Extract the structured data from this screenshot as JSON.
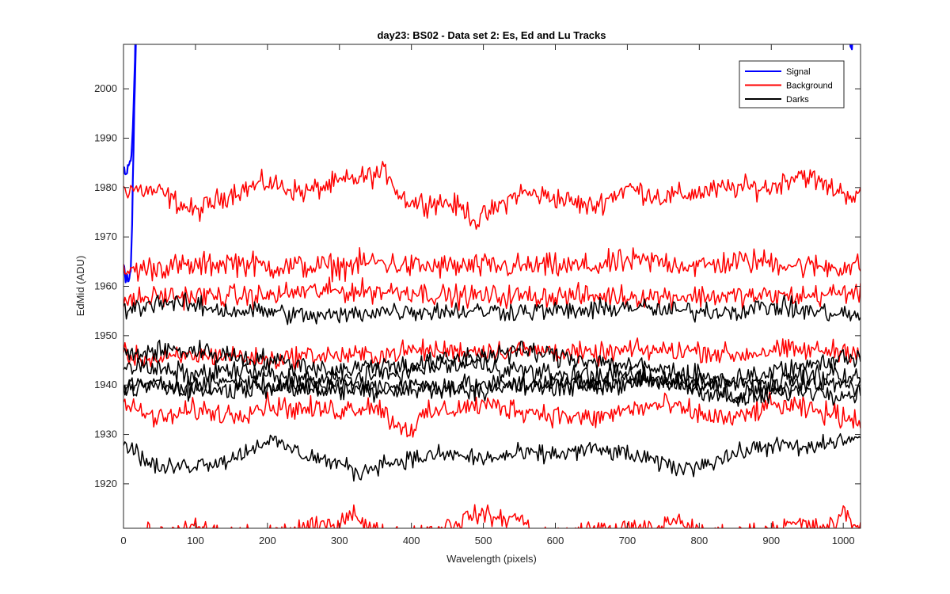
{
  "chart_data": {
    "type": "line",
    "title": "day23: BS02 - Data set 2: Es, Ed and Lu Tracks",
    "xlabel": "Wavelength (pixels)",
    "ylabel": "EdMid (ADU)",
    "xlim": [
      0,
      1024
    ],
    "ylim": [
      1911,
      2009
    ],
    "xticks": [
      0,
      100,
      200,
      300,
      400,
      500,
      600,
      700,
      800,
      900,
      1000
    ],
    "yticks": [
      1920,
      1930,
      1940,
      1950,
      1960,
      1970,
      1980,
      1990,
      2000
    ],
    "grid": false,
    "legend_position": "top-right",
    "colors": {
      "Signal": "#0000ff",
      "Background": "#ff0000",
      "Darks": "#000000"
    },
    "series": [
      {
        "name": "Signal",
        "color": "#0000ff",
        "noise": 1.2,
        "points": [
          [
            0,
            1983
          ],
          [
            3,
            1982
          ],
          [
            6,
            1984
          ],
          [
            9,
            1985
          ],
          [
            12,
            1988
          ],
          [
            14,
            1996
          ],
          [
            16,
            2006
          ],
          [
            17,
            2015
          ]
        ]
      },
      {
        "name": "Signal",
        "color": "#0000ff",
        "noise": 1.5,
        "points": [
          [
            0,
            1965
          ],
          [
            4,
            1962
          ],
          [
            7,
            1961
          ],
          [
            10,
            1963
          ],
          [
            12,
            1972
          ],
          [
            14,
            1988
          ],
          [
            16,
            2002
          ],
          [
            18,
            2015
          ]
        ]
      },
      {
        "name": "Signal",
        "color": "#0000ff",
        "noise": 1.0,
        "points": [
          [
            1008,
            2015
          ],
          [
            1010,
            2007
          ],
          [
            1013,
            2010
          ],
          [
            1016,
            2010
          ],
          [
            1020,
            2015
          ]
        ]
      },
      {
        "name": "Background",
        "color": "#ff0000",
        "noise": 1.6,
        "points": [
          [
            0,
            1980
          ],
          [
            50,
            1979
          ],
          [
            100,
            1975
          ],
          [
            150,
            1979
          ],
          [
            200,
            1981
          ],
          [
            250,
            1979
          ],
          [
            300,
            1981
          ],
          [
            330,
            1982
          ],
          [
            370,
            1983
          ],
          [
            380,
            1979
          ],
          [
            400,
            1977
          ],
          [
            450,
            1977
          ],
          [
            480,
            1975
          ],
          [
            490,
            1973
          ],
          [
            550,
            1979
          ],
          [
            600,
            1978
          ],
          [
            650,
            1976
          ],
          [
            700,
            1980
          ],
          [
            750,
            1978
          ],
          [
            800,
            1979
          ],
          [
            850,
            1980
          ],
          [
            900,
            1980
          ],
          [
            940,
            1983
          ],
          [
            980,
            1980
          ],
          [
            1024,
            1978
          ]
        ]
      },
      {
        "name": "Background",
        "color": "#ff0000",
        "noise": 1.8,
        "points": [
          [
            0,
            1963
          ],
          [
            50,
            1964
          ],
          [
            100,
            1964
          ],
          [
            150,
            1965
          ],
          [
            200,
            1964
          ],
          [
            250,
            1964
          ],
          [
            300,
            1964
          ],
          [
            350,
            1965
          ],
          [
            400,
            1964
          ],
          [
            450,
            1964
          ],
          [
            500,
            1964
          ],
          [
            550,
            1964
          ],
          [
            600,
            1964
          ],
          [
            650,
            1964
          ],
          [
            700,
            1965
          ],
          [
            750,
            1965
          ],
          [
            800,
            1964
          ],
          [
            850,
            1965
          ],
          [
            900,
            1965
          ],
          [
            950,
            1964
          ],
          [
            1024,
            1964
          ]
        ]
      },
      {
        "name": "Background",
        "color": "#ff0000",
        "noise": 1.6,
        "points": [
          [
            0,
            1957
          ],
          [
            50,
            1958
          ],
          [
            100,
            1958
          ],
          [
            150,
            1958
          ],
          [
            200,
            1958
          ],
          [
            250,
            1959
          ],
          [
            300,
            1959
          ],
          [
            350,
            1959
          ],
          [
            400,
            1959
          ],
          [
            450,
            1958
          ],
          [
            500,
            1958
          ],
          [
            550,
            1958
          ],
          [
            600,
            1958
          ],
          [
            650,
            1958
          ],
          [
            700,
            1958
          ],
          [
            750,
            1958
          ],
          [
            800,
            1958
          ],
          [
            850,
            1958
          ],
          [
            900,
            1958
          ],
          [
            950,
            1958
          ],
          [
            1024,
            1959
          ]
        ]
      },
      {
        "name": "Background",
        "color": "#ff0000",
        "noise": 1.5,
        "points": [
          [
            0,
            1946
          ],
          [
            50,
            1945
          ],
          [
            100,
            1946
          ],
          [
            150,
            1946
          ],
          [
            200,
            1945
          ],
          [
            250,
            1946
          ],
          [
            300,
            1946
          ],
          [
            350,
            1946
          ],
          [
            400,
            1947
          ],
          [
            450,
            1947
          ],
          [
            500,
            1947
          ],
          [
            550,
            1947
          ],
          [
            600,
            1947
          ],
          [
            650,
            1946
          ],
          [
            700,
            1947
          ],
          [
            750,
            1947
          ],
          [
            800,
            1947
          ],
          [
            850,
            1946
          ],
          [
            900,
            1947
          ],
          [
            950,
            1947
          ],
          [
            1024,
            1947
          ]
        ]
      },
      {
        "name": "Background",
        "color": "#ff0000",
        "noise": 1.6,
        "points": [
          [
            0,
            1936
          ],
          [
            50,
            1933
          ],
          [
            100,
            1935
          ],
          [
            150,
            1934
          ],
          [
            200,
            1936
          ],
          [
            250,
            1935
          ],
          [
            300,
            1935
          ],
          [
            350,
            1936
          ],
          [
            380,
            1932
          ],
          [
            400,
            1931
          ],
          [
            420,
            1934
          ],
          [
            450,
            1935
          ],
          [
            500,
            1936
          ],
          [
            550,
            1935
          ],
          [
            600,
            1934
          ],
          [
            650,
            1933
          ],
          [
            700,
            1935
          ],
          [
            750,
            1936
          ],
          [
            800,
            1934
          ],
          [
            850,
            1933
          ],
          [
            900,
            1936
          ],
          [
            950,
            1935
          ],
          [
            1024,
            1933
          ]
        ]
      },
      {
        "name": "Background",
        "color": "#ff0000",
        "noise": 1.3,
        "points": [
          [
            0,
            1910
          ],
          [
            60,
            1910
          ],
          [
            80,
            1911
          ],
          [
            100,
            1911
          ],
          [
            150,
            1910
          ],
          [
            200,
            1910
          ],
          [
            250,
            1911
          ],
          [
            300,
            1912
          ],
          [
            320,
            1915
          ],
          [
            330,
            1912
          ],
          [
            360,
            1910
          ],
          [
            400,
            1910
          ],
          [
            430,
            1911
          ],
          [
            460,
            1912
          ],
          [
            490,
            1914
          ],
          [
            520,
            1913
          ],
          [
            550,
            1913
          ],
          [
            580,
            1910
          ],
          [
            620,
            1910
          ],
          [
            650,
            1911
          ],
          [
            700,
            1911
          ],
          [
            740,
            1911
          ],
          [
            770,
            1913
          ],
          [
            800,
            1910
          ],
          [
            850,
            1910
          ],
          [
            900,
            1911
          ],
          [
            940,
            1912
          ],
          [
            960,
            1911
          ],
          [
            990,
            1912
          ],
          [
            1000,
            1914
          ],
          [
            1024,
            1911
          ]
        ]
      },
      {
        "name": "Darks",
        "color": "#000000",
        "noise": 1.4,
        "points": [
          [
            0,
            1955
          ],
          [
            50,
            1957
          ],
          [
            100,
            1956
          ],
          [
            150,
            1955
          ],
          [
            200,
            1955
          ],
          [
            250,
            1954
          ],
          [
            300,
            1954
          ],
          [
            350,
            1955
          ],
          [
            400,
            1955
          ],
          [
            450,
            1955
          ],
          [
            500,
            1955
          ],
          [
            550,
            1955
          ],
          [
            600,
            1955
          ],
          [
            650,
            1955
          ],
          [
            700,
            1956
          ],
          [
            750,
            1955
          ],
          [
            800,
            1955
          ],
          [
            850,
            1955
          ],
          [
            900,
            1956
          ],
          [
            950,
            1955
          ],
          [
            1024,
            1954
          ]
        ]
      },
      {
        "name": "Darks",
        "color": "#000000",
        "noise": 1.5,
        "points": [
          [
            0,
            1946
          ],
          [
            50,
            1947
          ],
          [
            100,
            1947
          ],
          [
            150,
            1946
          ],
          [
            200,
            1945
          ],
          [
            250,
            1944
          ],
          [
            300,
            1943
          ],
          [
            350,
            1944
          ],
          [
            400,
            1944
          ],
          [
            450,
            1945
          ],
          [
            500,
            1946
          ],
          [
            550,
            1947
          ],
          [
            600,
            1946
          ],
          [
            650,
            1945
          ],
          [
            700,
            1944
          ],
          [
            750,
            1943
          ],
          [
            800,
            1942
          ],
          [
            850,
            1937
          ],
          [
            900,
            1940
          ],
          [
            950,
            1944
          ],
          [
            1024,
            1946
          ]
        ]
      },
      {
        "name": "Darks",
        "color": "#000000",
        "noise": 1.5,
        "points": [
          [
            0,
            1944
          ],
          [
            50,
            1943
          ],
          [
            100,
            1942
          ],
          [
            150,
            1943
          ],
          [
            200,
            1942
          ],
          [
            250,
            1941
          ],
          [
            300,
            1941
          ],
          [
            350,
            1942
          ],
          [
            400,
            1943
          ],
          [
            450,
            1944
          ],
          [
            500,
            1944
          ],
          [
            550,
            1943
          ],
          [
            600,
            1942
          ],
          [
            650,
            1942
          ],
          [
            700,
            1942
          ],
          [
            750,
            1941
          ],
          [
            800,
            1940
          ],
          [
            850,
            1941
          ],
          [
            900,
            1943
          ],
          [
            950,
            1942
          ],
          [
            1024,
            1941
          ]
        ]
      },
      {
        "name": "Darks",
        "color": "#000000",
        "noise": 1.5,
        "points": [
          [
            0,
            1940
          ],
          [
            50,
            1940
          ],
          [
            100,
            1939
          ],
          [
            150,
            1939
          ],
          [
            200,
            1940
          ],
          [
            250,
            1940
          ],
          [
            300,
            1940
          ],
          [
            350,
            1940
          ],
          [
            400,
            1940
          ],
          [
            450,
            1940
          ],
          [
            500,
            1940
          ],
          [
            550,
            1940
          ],
          [
            600,
            1940
          ],
          [
            650,
            1940
          ],
          [
            700,
            1941
          ],
          [
            750,
            1941
          ],
          [
            800,
            1941
          ],
          [
            850,
            1941
          ],
          [
            900,
            1940
          ],
          [
            950,
            1940
          ],
          [
            1024,
            1940
          ]
        ]
      },
      {
        "name": "Darks",
        "color": "#000000",
        "noise": 1.4,
        "points": [
          [
            0,
            1939
          ],
          [
            50,
            1940
          ],
          [
            100,
            1940
          ],
          [
            150,
            1941
          ],
          [
            200,
            1940
          ],
          [
            250,
            1939
          ],
          [
            300,
            1939
          ],
          [
            350,
            1939
          ],
          [
            400,
            1939
          ],
          [
            450,
            1939
          ],
          [
            500,
            1939
          ],
          [
            550,
            1940
          ],
          [
            600,
            1940
          ],
          [
            650,
            1940
          ],
          [
            700,
            1940
          ],
          [
            750,
            1941
          ],
          [
            800,
            1939
          ],
          [
            850,
            1937
          ],
          [
            900,
            1938
          ],
          [
            950,
            1939
          ],
          [
            1024,
            1938
          ]
        ]
      },
      {
        "name": "Darks",
        "color": "#000000",
        "noise": 1.3,
        "points": [
          [
            0,
            1929
          ],
          [
            20,
            1926
          ],
          [
            50,
            1923
          ],
          [
            100,
            1924
          ],
          [
            150,
            1925
          ],
          [
            200,
            1929
          ],
          [
            250,
            1926
          ],
          [
            300,
            1924
          ],
          [
            330,
            1922
          ],
          [
            350,
            1924
          ],
          [
            400,
            1925
          ],
          [
            450,
            1926
          ],
          [
            500,
            1925
          ],
          [
            550,
            1926
          ],
          [
            600,
            1926
          ],
          [
            650,
            1927
          ],
          [
            700,
            1926
          ],
          [
            750,
            1924
          ],
          [
            780,
            1923
          ],
          [
            800,
            1924
          ],
          [
            850,
            1926
          ],
          [
            900,
            1928
          ],
          [
            950,
            1927
          ],
          [
            1000,
            1929
          ],
          [
            1024,
            1929
          ]
        ]
      }
    ]
  }
}
